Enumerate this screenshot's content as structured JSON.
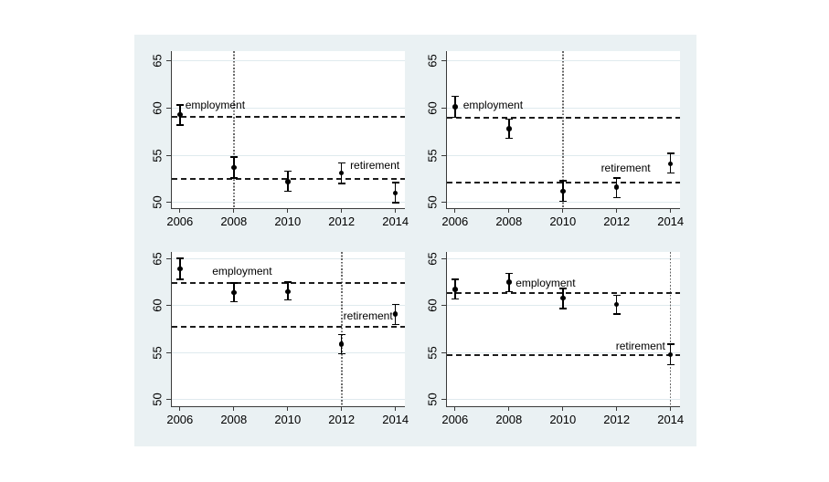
{
  "figure": {
    "background": "#eaf1f3",
    "plot_background": "#ffffff",
    "grid_color": "#dfeaee",
    "axis_color": "#3a3a3a",
    "point_color": "#000000",
    "ref_line_color": "#1c1c1c",
    "vline_color": "#676767",
    "text_color": "#000000"
  },
  "chart_data": [
    {
      "type": "scatter",
      "panel": "top-left",
      "title": "",
      "xlabel": "",
      "ylabel": "",
      "x": [
        2006,
        2008,
        2010,
        2012,
        2014
      ],
      "values": [
        59.3,
        53.7,
        52.2,
        53.1,
        51.0
      ],
      "ci_low": [
        58.2,
        52.6,
        51.2,
        52.0,
        50.0
      ],
      "ci_high": [
        60.3,
        54.8,
        53.3,
        54.2,
        52.1
      ],
      "reference_lines": {
        "employment": 59.1,
        "retirement": 52.5
      },
      "vline_x": 2008,
      "annotations": [
        {
          "text": "employment",
          "x": 2006.2,
          "y_bottom": 59.6,
          "align": "left"
        },
        {
          "text": "retirement",
          "x": 2014.15,
          "y_bottom": 53.3,
          "align": "right"
        }
      ],
      "xticks": [
        2006,
        2008,
        2010,
        2012,
        2014
      ],
      "yticks": [
        50,
        55,
        60,
        65
      ],
      "xlim": [
        2005.7,
        2014.35
      ],
      "ylim": [
        49.4,
        66.0
      ],
      "grid": true
    },
    {
      "type": "scatter",
      "panel": "top-right",
      "title": "",
      "xlabel": "",
      "ylabel": "",
      "x": [
        2006,
        2008,
        2010,
        2012,
        2014
      ],
      "values": [
        60.1,
        57.8,
        51.2,
        51.6,
        54.1
      ],
      "ci_low": [
        59.0,
        56.8,
        50.1,
        50.5,
        53.1
      ],
      "ci_high": [
        61.2,
        58.8,
        52.3,
        52.6,
        55.2
      ],
      "reference_lines": {
        "employment": 59.0,
        "retirement": 52.1
      },
      "vline_x": 2010,
      "annotations": [
        {
          "text": "employment",
          "x": 2006.3,
          "y_bottom": 59.65,
          "align": "left"
        },
        {
          "text": "retirement",
          "x": 2013.25,
          "y_bottom": 52.95,
          "align": "right"
        }
      ],
      "xticks": [
        2006,
        2008,
        2010,
        2012,
        2014
      ],
      "yticks": [
        50,
        55,
        60,
        65
      ],
      "xlim": [
        2005.7,
        2014.35
      ],
      "ylim": [
        49.4,
        66.0
      ],
      "grid": true
    },
    {
      "type": "scatter",
      "panel": "bottom-left",
      "title": "",
      "xlabel": "",
      "ylabel": "",
      "x": [
        2006,
        2008,
        2010,
        2012,
        2014
      ],
      "values": [
        63.9,
        61.4,
        61.5,
        55.9,
        59.1
      ],
      "ci_low": [
        62.8,
        60.4,
        60.6,
        54.9,
        58.0
      ],
      "ci_high": [
        65.0,
        62.4,
        62.5,
        56.9,
        60.1
      ],
      "reference_lines": {
        "employment": 62.4,
        "retirement": 57.7
      },
      "vline_x": 2012,
      "annotations": [
        {
          "text": "employment",
          "x": 2007.2,
          "y_bottom": 62.95,
          "align": "left"
        },
        {
          "text": "retirement",
          "x": 2013.9,
          "y_bottom": 58.2,
          "align": "right"
        }
      ],
      "xticks": [
        2006,
        2008,
        2010,
        2012,
        2014
      ],
      "yticks": [
        50,
        55,
        60,
        65
      ],
      "xlim": [
        2005.7,
        2014.35
      ],
      "ylim": [
        49.3,
        65.7
      ],
      "grid": true
    },
    {
      "type": "scatter",
      "panel": "bottom-right",
      "title": "",
      "xlabel": "",
      "ylabel": "",
      "x": [
        2006,
        2008,
        2010,
        2012,
        2014
      ],
      "values": [
        61.7,
        62.5,
        60.8,
        60.1,
        54.8
      ],
      "ci_low": [
        60.7,
        61.5,
        59.7,
        59.1,
        53.7
      ],
      "ci_high": [
        62.8,
        63.4,
        61.8,
        61.1,
        55.9
      ],
      "reference_lines": {
        "employment": 61.3,
        "retirement": 54.7
      },
      "vline_x": 2014,
      "annotations": [
        {
          "text": "employment",
          "x": 2008.25,
          "y_bottom": 61.75,
          "align": "left"
        },
        {
          "text": "retirement",
          "x": 2013.8,
          "y_bottom": 55.0,
          "align": "right"
        }
      ],
      "xticks": [
        2006,
        2008,
        2010,
        2012,
        2014
      ],
      "yticks": [
        50,
        55,
        60,
        65
      ],
      "xlim": [
        2005.7,
        2014.35
      ],
      "ylim": [
        49.3,
        65.7
      ],
      "grid": true
    }
  ]
}
